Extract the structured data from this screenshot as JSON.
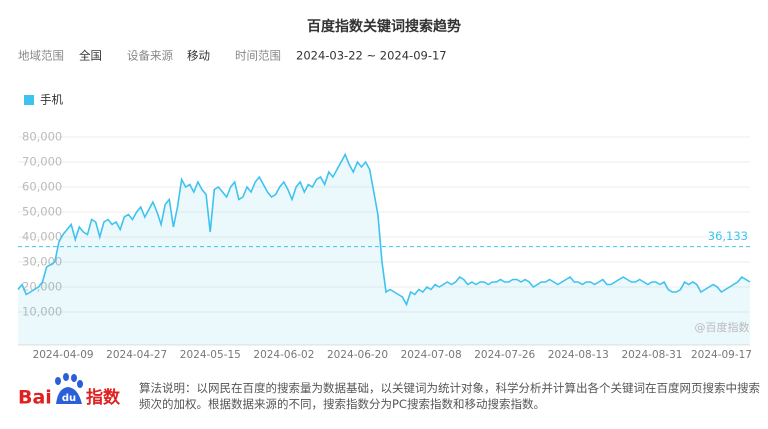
{
  "header": {
    "title": "百度指数关键词搜索趋势",
    "filters": [
      {
        "label": "地域范围",
        "value": "全国"
      },
      {
        "label": "设备来源",
        "value": "移动"
      },
      {
        "label": "时间范围",
        "value": "2024-03-22 ~ 2024-09-17"
      }
    ]
  },
  "chart_data": {
    "type": "area",
    "categories": [
      null,
      null,
      null,
      null,
      null,
      null,
      null,
      null,
      null,
      null,
      null,
      null,
      null,
      null,
      null,
      null,
      null,
      null,
      "2024-04-09",
      null,
      null,
      null,
      null,
      null,
      null,
      null,
      null,
      null,
      null,
      null,
      null,
      null,
      null,
      null,
      null,
      null,
      "2024-04-27",
      null,
      null,
      null,
      null,
      null,
      null,
      null,
      null,
      null,
      null,
      null,
      null,
      null,
      null,
      null,
      null,
      null,
      "2024-05-15",
      null,
      null,
      null,
      null,
      null,
      null,
      null,
      null,
      null,
      null,
      null,
      null,
      null,
      null,
      null,
      null,
      null,
      "2024-06-02",
      null,
      null,
      null,
      null,
      null,
      null,
      null,
      null,
      null,
      null,
      null,
      null,
      null,
      null,
      null,
      null,
      null,
      "2024-06-20",
      null,
      null,
      null,
      null,
      null,
      null,
      null,
      null,
      null,
      null,
      null,
      null,
      null,
      null,
      null,
      null,
      null,
      "2024-07-08",
      null,
      null,
      null,
      null,
      null,
      null,
      null,
      null,
      null,
      null,
      null,
      null,
      null,
      null,
      null,
      null,
      null,
      "2024-07-26",
      null,
      null,
      null,
      null,
      null,
      null,
      null,
      null,
      null,
      null,
      null,
      null,
      null,
      null,
      null,
      null,
      null,
      "2024-08-13",
      null,
      null,
      null,
      null,
      null,
      null,
      null,
      null,
      null,
      null,
      null,
      null,
      null,
      null,
      null,
      null,
      null,
      "2024-08-31",
      null,
      null,
      null,
      null,
      null,
      null,
      null,
      null,
      null,
      null,
      null,
      null,
      null,
      null,
      null,
      null,
      "2024-09-17"
    ],
    "series": [
      {
        "name": "手机",
        "color": "#3ec3f0",
        "values": [
          19000,
          21000,
          17000,
          18000,
          19000,
          20000,
          22000,
          28000,
          29000,
          30000,
          38000,
          41000,
          43000,
          45000,
          39000,
          44000,
          42000,
          41000,
          47000,
          46000,
          40000,
          46000,
          47000,
          45000,
          46000,
          43000,
          48000,
          49000,
          47000,
          50000,
          52000,
          48000,
          51000,
          54000,
          50000,
          45000,
          53000,
          55000,
          44000,
          52000,
          63000,
          60000,
          61000,
          58000,
          62000,
          59000,
          57000,
          42000,
          59000,
          60000,
          58000,
          56000,
          60000,
          62000,
          55000,
          56000,
          60000,
          58000,
          62000,
          64000,
          61000,
          58000,
          56000,
          57000,
          60000,
          62000,
          59000,
          55000,
          60000,
          62000,
          58000,
          61000,
          60000,
          63000,
          64000,
          61000,
          66000,
          64000,
          67000,
          70000,
          73000,
          69000,
          66000,
          70000,
          68000,
          70000,
          67000,
          58000,
          49000,
          30000,
          18000,
          19000,
          18000,
          17000,
          16000,
          13000,
          18000,
          17000,
          19000,
          18000,
          20000,
          19000,
          21000,
          20000,
          21000,
          22000,
          21000,
          22000,
          24000,
          23000,
          21000,
          22000,
          21000,
          22000,
          22000,
          21000,
          22000,
          22000,
          23000,
          22000,
          22000,
          23000,
          23000,
          22000,
          23000,
          22000,
          20000,
          21000,
          22000,
          22000,
          23000,
          22000,
          21000,
          22000,
          23000,
          24000,
          22000,
          22000,
          21000,
          22000,
          22000,
          21000,
          22000,
          23000,
          21000,
          21000,
          22000,
          23000,
          24000,
          23000,
          22000,
          22000,
          23000,
          22000,
          21000,
          22000,
          22000,
          21000,
          22000,
          19000,
          18000,
          18000,
          19000,
          22000,
          21000,
          22000,
          21000,
          18000,
          19000,
          20000,
          21000,
          20000,
          18000,
          19000,
          20000,
          21000,
          22000,
          24000,
          23000,
          22000
        ]
      }
    ],
    "ylim": [
      0,
      80000
    ],
    "yticks": [
      {
        "value": 10000,
        "label": "10,000"
      },
      {
        "value": 20000,
        "label": "20,000"
      },
      {
        "value": 30000,
        "label": "30,000"
      },
      {
        "value": 40000,
        "label": "40,000"
      },
      {
        "value": 50000,
        "label": "50,000"
      },
      {
        "value": 60000,
        "label": "60,000"
      },
      {
        "value": 70000,
        "label": "70,000"
      },
      {
        "value": 80000,
        "label": "80,000"
      }
    ],
    "grid": true,
    "average": {
      "value": 36133,
      "label": "36,133"
    },
    "watermark": "@百度指数"
  },
  "footer": {
    "logo": {
      "left": "Bai",
      "paw": "du",
      "right": "指数"
    },
    "note": "算法说明：以网民在百度的搜索量为数据基础，以关键词为统计对象，科学分析并计算出各个关键词在百度网页搜索中搜索频次的加权。根据数据来源的不同，搜索指数分为PC搜索指数和移动搜索指数。"
  }
}
